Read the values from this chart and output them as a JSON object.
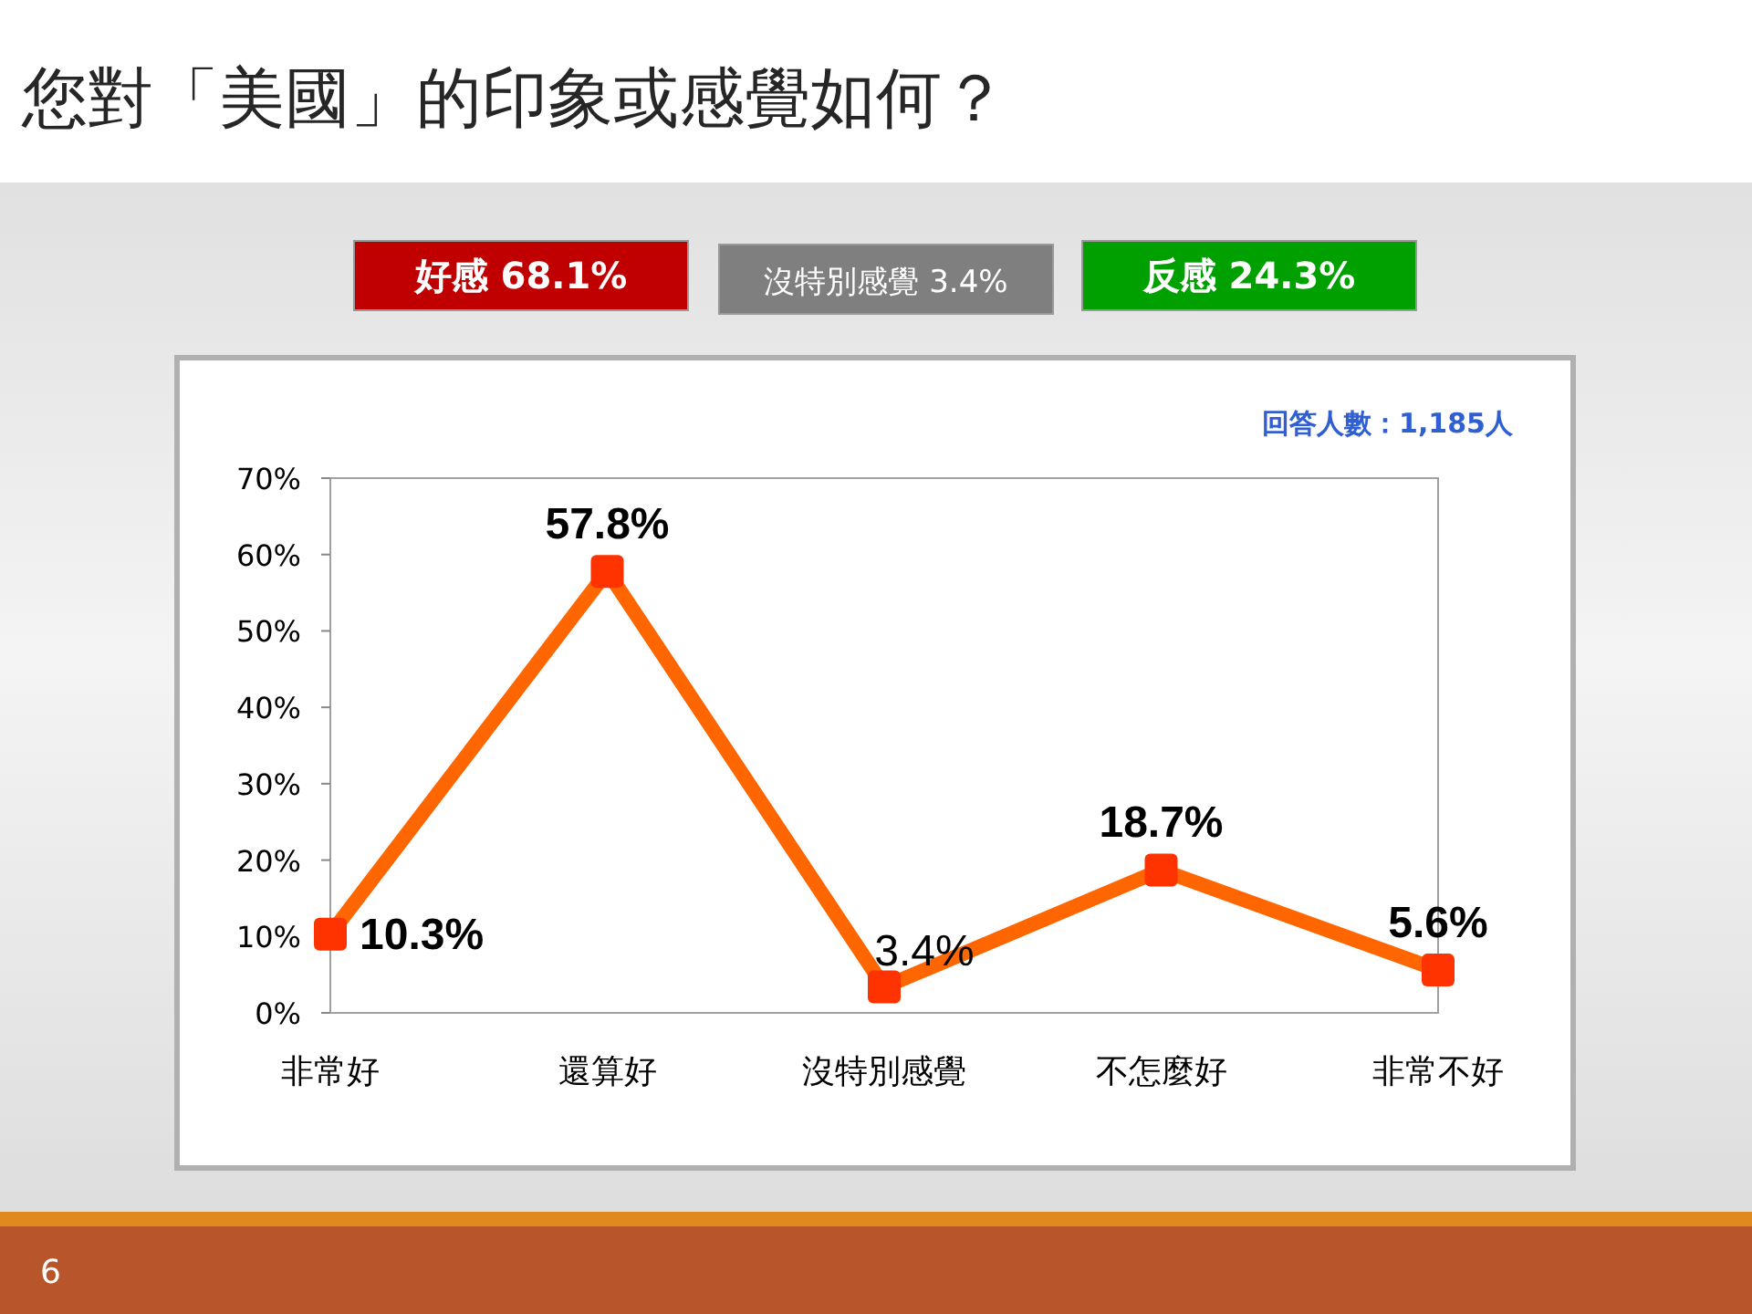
{
  "chart_data": {
    "type": "line",
    "title": "您對「美國」的印象或感覺如何？",
    "categories": [
      "非常好",
      "還算好",
      "沒特別感覺",
      "不怎麼好",
      "非常不好"
    ],
    "values": [
      10.3,
      57.8,
      3.4,
      18.7,
      5.6
    ],
    "value_labels": [
      "10.3%",
      "57.8%",
      "3.4%",
      "18.7%",
      "5.6%"
    ],
    "color": "#ff6600",
    "marker": "square",
    "line_style": "solid",
    "ylim": [
      0,
      70
    ],
    "yticks": [
      {
        "value": 0,
        "label": "0%"
      },
      {
        "value": 10,
        "label": "10%"
      },
      {
        "value": 20,
        "label": "20%"
      },
      {
        "value": 30,
        "label": "30%"
      },
      {
        "value": 40,
        "label": "40%"
      },
      {
        "value": 50,
        "label": "50%"
      },
      {
        "value": 60,
        "label": "60%"
      },
      {
        "value": 70,
        "label": "70%"
      }
    ],
    "grid": false,
    "annotations": [
      "好感 68.1%",
      "沒特別感覺 3.4%",
      "反感 24.3%",
      "回答人數：1,185人",
      "6"
    ]
  }
}
